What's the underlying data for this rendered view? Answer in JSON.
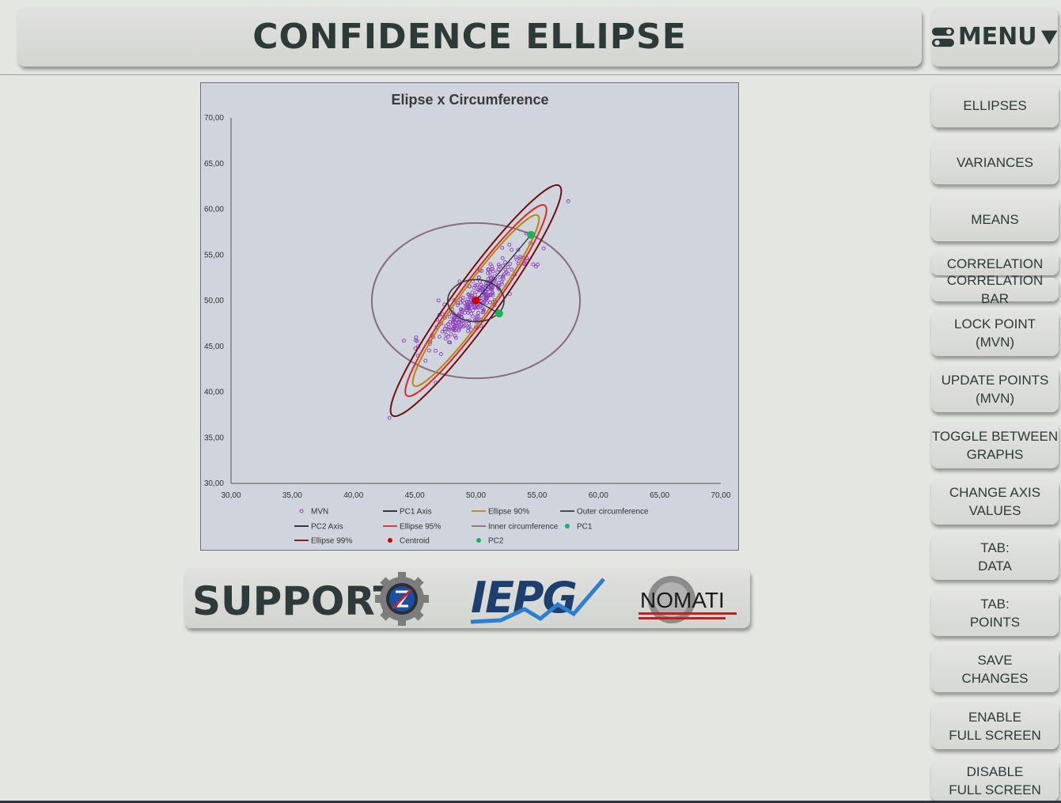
{
  "header": {
    "title": "CONFIDENCE ELLIPSE"
  },
  "menu": {
    "label": "MENU"
  },
  "sidebar": {
    "buttons": [
      "ELLIPSES",
      "VARIANCES",
      "MEANS",
      "CORRELATION",
      "CORRELATION BAR",
      "LOCK POINT\n(MVN)",
      "UPDATE POINTS\n(MVN)",
      "TOGGLE BETWEEN\nGRAPHS",
      "CHANGE AXIS\nVALUES",
      "TAB:\nDATA",
      "TAB:\nPOINTS",
      "SAVE\nCHANGES",
      "ENABLE\nFULL SCREEN",
      "DISABLE\nFULL SCREEN"
    ]
  },
  "support": {
    "label": "SUPPORT",
    "logo_iepg": "IEPG",
    "logo_nomati": "NOMATI"
  },
  "colors": {
    "mvn": "#8a3fc0",
    "pc1_axis": "#222222",
    "ellipse90": "#b8860b",
    "ellipse95": "#d62b2b",
    "ellipse99": "#6e0f0f",
    "outer": "#8a6a82",
    "inner": "#3a3a3a",
    "centroid": "#d10000",
    "pc": "#19b35a"
  },
  "chart_data": {
    "type": "scatter",
    "title": "Elipse x Circumference",
    "xlim": [
      30,
      70
    ],
    "ylim": [
      30,
      70
    ],
    "x_ticks": [
      "30,00",
      "35,00",
      "40,00",
      "45,00",
      "50,00",
      "55,00",
      "60,00",
      "65,00",
      "70,00"
    ],
    "y_ticks": [
      "30,00",
      "35,00",
      "40,00",
      "45,00",
      "50,00",
      "55,00",
      "60,00",
      "65,00",
      "70,00"
    ],
    "centroid": [
      50,
      50
    ],
    "pc1_point": [
      54.5,
      57.2
    ],
    "pc2_point": [
      51.9,
      48.6
    ],
    "outer_circumference": {
      "center": [
        50,
        50
      ],
      "rx": 8.5,
      "ry": 8.5
    },
    "inner_circumference": {
      "center": [
        50,
        50
      ],
      "rx": 2.3,
      "ry": 2.3
    },
    "ellipses": [
      {
        "name": "Ellipse 90%",
        "a": 8.6,
        "b": 1.7
      },
      {
        "name": "Ellipse 95%",
        "a": 9.6,
        "b": 1.95
      },
      {
        "name": "Ellipse 99%",
        "a": 11.6,
        "b": 2.4
      }
    ],
    "ellipse_angle_deg": 54,
    "mvn_point_count": 320,
    "legend": [
      "MVN",
      "PC1 Axis",
      "Ellipse 90%",
      "Outer circumference",
      "PC2 Axis",
      "Ellipse 95%",
      "Inner circumference",
      "PC1",
      "Ellipse 99%",
      "Centroid",
      "PC2"
    ],
    "legend_placement": "bottom"
  }
}
